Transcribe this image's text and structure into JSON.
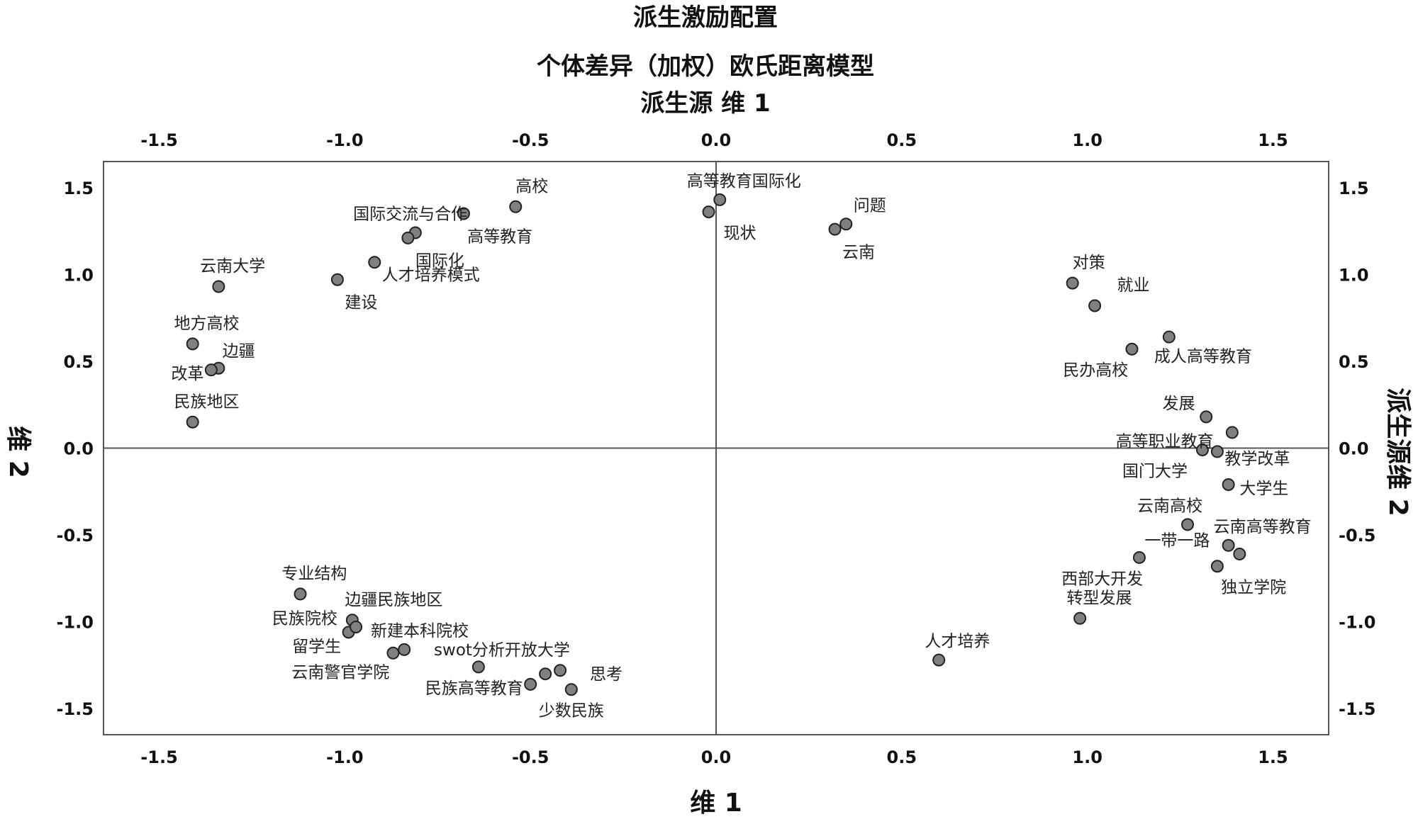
{
  "chart_data": {
    "type": "scatter",
    "title": "派生激励配置",
    "subtitle": "个体差异（加权）欧氏距离模型",
    "top_axis_title": "派生源 维 1",
    "xlabel": "维 1",
    "ylabel": "维 2",
    "right_axis_title": "派生源维 2",
    "xlim": [
      -1.65,
      1.65
    ],
    "ylim": [
      -1.65,
      1.65
    ],
    "xticks": [
      -1.5,
      -1.0,
      -0.5,
      0.0,
      0.5,
      1.0,
      1.5
    ],
    "yticks": [
      1.5,
      1.0,
      0.5,
      0.0,
      -0.5,
      -1.0,
      -1.5
    ],
    "xtick_labels": [
      "-1.5",
      "-1.0",
      "-0.5",
      "0.0",
      "0.5",
      "1.0",
      "1.5"
    ],
    "ytick_labels": [
      "1.5",
      "1.0",
      "0.5",
      "0.0",
      "-0.5",
      "-1.0",
      "-1.5"
    ],
    "reference_lines": {
      "x": 0,
      "y": 0
    },
    "legend": "none",
    "points": [
      {
        "label": "高等教育国际化",
        "x": 0.01,
        "y": 1.43,
        "anchor": "middle",
        "ldx": 0.065,
        "ldy": 0.11
      },
      {
        "label": "现状",
        "x": -0.02,
        "y": 1.36,
        "anchor": "start",
        "ldx": 0.04,
        "ldy": -0.12
      },
      {
        "label": "问题",
        "x": 0.35,
        "y": 1.29,
        "anchor": "start",
        "ldx": 0.02,
        "ldy": 0.11
      },
      {
        "label": "云南",
        "x": 0.32,
        "y": 1.26,
        "anchor": "start",
        "ldx": 0.02,
        "ldy": -0.13
      },
      {
        "label": "高校",
        "x": -0.54,
        "y": 1.39,
        "anchor": "start",
        "ldx": 0.0,
        "ldy": 0.12
      },
      {
        "label": "高等教育",
        "x": -0.68,
        "y": 1.35,
        "anchor": "start",
        "ldx": 0.01,
        "ldy": -0.13
      },
      {
        "label": "国际交流与合作",
        "x": -0.81,
        "y": 1.24,
        "anchor": "end",
        "ldx": 0.14,
        "ldy": 0.11
      },
      {
        "label": "国际化",
        "x": -0.83,
        "y": 1.21,
        "anchor": "start",
        "ldx": 0.02,
        "ldy": -0.13
      },
      {
        "label": "人才培养模式",
        "x": -0.92,
        "y": 1.07,
        "anchor": "start",
        "ldx": 0.02,
        "ldy": -0.07
      },
      {
        "label": "建设",
        "x": -1.02,
        "y": 0.97,
        "anchor": "start",
        "ldx": 0.02,
        "ldy": -0.13
      },
      {
        "label": "云南大学",
        "x": -1.34,
        "y": 0.93,
        "anchor": "start",
        "ldx": -0.05,
        "ldy": 0.12
      },
      {
        "label": "地方高校",
        "x": -1.41,
        "y": 0.6,
        "anchor": "start",
        "ldx": -0.05,
        "ldy": 0.12
      },
      {
        "label": "边疆",
        "x": -1.34,
        "y": 0.46,
        "anchor": "start",
        "ldx": 0.01,
        "ldy": 0.1
      },
      {
        "label": "改革",
        "x": -1.36,
        "y": 0.45,
        "anchor": "end",
        "ldx": -0.02,
        "ldy": -0.02
      },
      {
        "label": "民族地区",
        "x": -1.41,
        "y": 0.15,
        "anchor": "start",
        "ldx": -0.05,
        "ldy": 0.12
      },
      {
        "label": "对策",
        "x": 0.96,
        "y": 0.95,
        "anchor": "start",
        "ldx": 0.0,
        "ldy": 0.12
      },
      {
        "label": "就业",
        "x": 1.02,
        "y": 0.82,
        "anchor": "start",
        "ldx": 0.06,
        "ldy": 0.12
      },
      {
        "label": "成人高等教育",
        "x": 1.22,
        "y": 0.64,
        "anchor": "start",
        "ldx": -0.04,
        "ldy": -0.11
      },
      {
        "label": "民办高校",
        "x": 1.12,
        "y": 0.57,
        "anchor": "end",
        "ldx": -0.01,
        "ldy": -0.12
      },
      {
        "label": "发展",
        "x": 1.32,
        "y": 0.18,
        "anchor": "end",
        "ldx": -0.03,
        "ldy": 0.08
      },
      {
        "label": "高等职业教育",
        "x": 1.39,
        "y": 0.09,
        "anchor": "end",
        "ldx": -0.05,
        "ldy": -0.05
      },
      {
        "label": "国门大学",
        "x": 1.31,
        "y": -0.01,
        "anchor": "end",
        "ldx": -0.04,
        "ldy": -0.12
      },
      {
        "label": "教学改革",
        "x": 1.35,
        "y": -0.02,
        "anchor": "start",
        "ldx": 0.02,
        "ldy": -0.04
      },
      {
        "label": "大学生",
        "x": 1.38,
        "y": -0.21,
        "anchor": "start",
        "ldx": 0.03,
        "ldy": -0.02
      },
      {
        "label": "云南高校",
        "x": 1.27,
        "y": -0.44,
        "anchor": "end",
        "ldx": 0.04,
        "ldy": 0.11
      },
      {
        "label": "云南高等教育",
        "x": 1.38,
        "y": -0.56,
        "anchor": "start",
        "ldx": -0.04,
        "ldy": 0.11
      },
      {
        "label": "一带一路",
        "x": 1.41,
        "y": -0.61,
        "anchor": "end",
        "ldx": -0.08,
        "ldy": 0.08
      },
      {
        "label": "独立学院",
        "x": 1.35,
        "y": -0.68,
        "anchor": "start",
        "ldx": 0.01,
        "ldy": -0.12
      },
      {
        "label": "西部大开发",
        "x": 1.14,
        "y": -0.63,
        "anchor": "end",
        "ldx": 0.01,
        "ldy": -0.12
      },
      {
        "label": "转型发展",
        "x": 0.98,
        "y": -0.98,
        "anchor": "end",
        "ldx": 0.14,
        "ldy": 0.12
      },
      {
        "label": "人才培养",
        "x": 0.6,
        "y": -1.22,
        "anchor": "middle",
        "ldx": 0.05,
        "ldy": 0.11
      },
      {
        "label": "专业结构",
        "x": -1.12,
        "y": -0.84,
        "anchor": "start",
        "ldx": -0.05,
        "ldy": 0.12
      },
      {
        "label": "边疆民族地区",
        "x": -0.98,
        "y": -0.99,
        "anchor": "start",
        "ldx": -0.02,
        "ldy": 0.12
      },
      {
        "label": "民族院校",
        "x": -0.99,
        "y": -1.06,
        "anchor": "end",
        "ldx": -0.03,
        "ldy": 0.08
      },
      {
        "label": "新建本科院校",
        "x": -0.97,
        "y": -1.03,
        "anchor": "start",
        "ldx": 0.04,
        "ldy": -0.02
      },
      {
        "label": "留学生",
        "x": -0.87,
        "y": -1.18,
        "anchor": "end",
        "ldx": -0.14,
        "ldy": 0.04
      },
      {
        "label": "云南警官学院",
        "x": -0.84,
        "y": -1.16,
        "anchor": "end",
        "ldx": -0.04,
        "ldy": -0.13
      },
      {
        "label": "swot分析开放大学",
        "x": -0.64,
        "y": -1.26,
        "anchor": "start",
        "ldx": -0.12,
        "ldy": 0.1
      },
      {
        "label": "民族高等教育",
        "x": -0.5,
        "y": -1.36,
        "anchor": "end",
        "ldx": -0.02,
        "ldy": -0.02
      },
      {
        "label": "思考",
        "x": -0.42,
        "y": -1.28,
        "anchor": "start",
        "ldx": 0.08,
        "ldy": -0.02
      },
      {
        "label": "",
        "x": -0.46,
        "y": -1.3,
        "anchor": "start",
        "ldx": 0.0,
        "ldy": 0.0
      },
      {
        "label": "少数民族",
        "x": -0.39,
        "y": -1.39,
        "anchor": "middle",
        "ldx": 0.0,
        "ldy": -0.12
      }
    ]
  }
}
